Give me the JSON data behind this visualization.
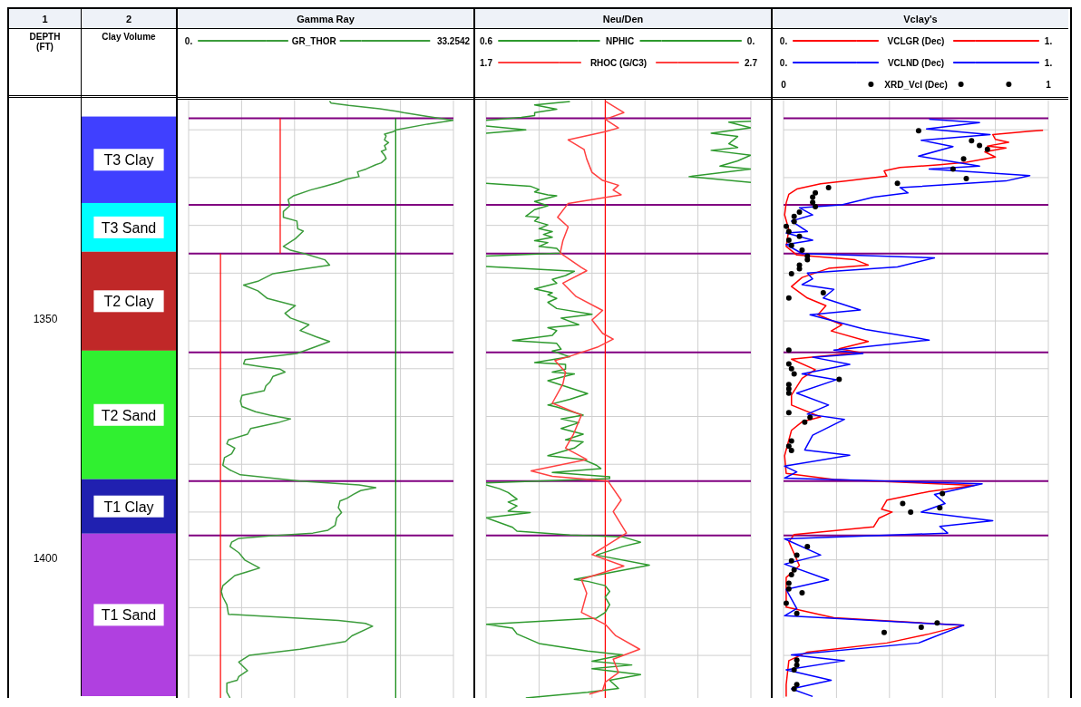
{
  "chart_data": [
    {
      "type": "bar",
      "title": "Clay Volume",
      "ylabel": "DEPTH (FT)",
      "annotations": [
        "1",
        "2"
      ],
      "categories": [
        null
      ],
      "ylim": [
        1428.9,
        1303.7
      ],
      "yticks": [
        1350,
        1400
      ],
      "series": [
        {
          "name": "T3 Clay",
          "color": "#4040ff",
          "base": [
            1307.6
          ],
          "values": [
            18.1
          ]
        },
        {
          "name": "T3 Sand",
          "color": "#00ffff",
          "base": [
            1325.7
          ],
          "values": [
            10.2
          ]
        },
        {
          "name": "T2 Clay",
          "color": "#c02828",
          "base": [
            1335.9
          ],
          "values": [
            20.7
          ]
        },
        {
          "name": "T2 Sand",
          "color": "#30f030",
          "base": [
            1356.6
          ],
          "values": [
            26.9
          ]
        },
        {
          "name": "T1 Clay",
          "color": "#2020b0",
          "base": [
            1383.5
          ],
          "values": [
            11.4
          ]
        },
        {
          "name": "T1 Sand",
          "color": "#b040e0",
          "base": [
            1394.9
          ],
          "values": [
            34.0
          ]
        }
      ]
    },
    {
      "type": "line",
      "title": "Gamma Ray",
      "legend": "top",
      "grid": true,
      "tick_labels": "x",
      "ylim": [
        1428.9,
        1303.7
      ],
      "yticks": [
        {
          "value": 1310,
          "label": null
        },
        {
          "value": 1320,
          "label": null
        },
        {
          "value": 1330,
          "label": null
        },
        {
          "value": 1340,
          "label": null
        },
        {
          "value": 1350,
          "label": null
        },
        {
          "value": 1360,
          "label": null
        },
        {
          "value": 1370,
          "label": null
        },
        {
          "value": 1380,
          "label": null
        },
        {
          "value": 1390,
          "label": null
        },
        {
          "value": 1400,
          "label": null
        },
        {
          "value": 1410,
          "label": null
        },
        {
          "value": 1420,
          "label": null
        }
      ],
      "xlim": [
        0,
        33.2542
      ],
      "xticks": [
        {
          "value": 0,
          "label": "0."
        },
        {
          "value": 6.65084,
          "label": null
        },
        {
          "value": 13.30168,
          "label": null
        },
        {
          "value": 19.95252,
          "label": null
        },
        {
          "value": 26.60336,
          "label": null
        },
        33.2542
      ],
      "ref_lines": [
        {
          "axis": "y",
          "value": 1307.6,
          "color": "#800080"
        },
        {
          "axis": "y",
          "value": 1325.7,
          "color": "#800080"
        },
        {
          "axis": "y",
          "value": 1335.9,
          "color": "#800080"
        },
        {
          "axis": "y",
          "value": 1356.6,
          "color": "#800080"
        },
        {
          "axis": "y",
          "value": 1383.5,
          "color": "#800080"
        },
        {
          "axis": "y",
          "value": 1394.9,
          "color": "#800080"
        }
      ],
      "series": [
        {
          "type": "line",
          "color": "#ff0000",
          "x": [
            11.5,
            11.5
          ],
          "values": [
            1307.6,
            1335.9
          ]
        },
        {
          "type": "line",
          "color": "#ff0000",
          "x": [
            4.0,
            4.0
          ],
          "values": [
            1335.9,
            1428.9
          ]
        },
        {
          "type": "line",
          "color": "#008000",
          "x": [
            26.0,
            26.0
          ],
          "values": [
            1307.6,
            1428.9
          ]
        },
        {
          "name": "GR_THOR",
          "type": "line",
          "color": "#3c9c3c",
          "x": [
            17.7,
            17.9,
            20.1,
            24.0,
            26.1,
            27.0,
            30.0,
            33.2,
            30.0,
            26.1,
            25.7,
            24.6,
            24.8,
            24.6,
            25.1,
            24.6,
            24.8,
            24.2,
            24.6,
            24.8,
            24.2,
            23.5,
            22.3,
            21.2,
            21.4,
            19.9,
            18.8,
            17.1,
            15.3,
            13.2,
            12.5,
            12.7,
            11.9,
            11.9,
            13.6,
            13.7,
            14.4,
            13.4,
            11.9,
            12.8,
            14.7,
            17.1,
            17.7,
            14.0,
            10.6,
            8.7,
            6.9,
            8.7,
            9.9,
            13.4,
            12.1,
            12.8,
            15.1,
            14.0,
            16.0,
            17.7,
            15.8,
            13.6,
            7.1,
            6.9,
            8.9,
            11.5,
            12.1,
            10.6,
            10.2,
            9.7,
            9.5,
            6.7,
            6.5,
            6.7,
            8.4,
            10.2,
            12.8,
            11.2,
            7.8,
            7.4,
            5.0,
            4.8,
            5.8,
            5.4,
            4.5,
            4.3,
            5.2,
            6.5,
            14.0,
            21.4,
            23.5,
            21.6,
            20.7,
            19.9,
            19.0,
            18.8,
            19.2,
            18.6,
            18.4,
            17.5,
            15.6,
            10.2,
            6.3,
            5.4,
            5.2,
            6.3,
            7.1,
            8.9,
            7.4,
            5.8,
            4.3,
            4.1,
            4.3,
            4.8,
            5.0,
            18.8,
            22.2,
            23.1,
            20.5,
            19.7,
            14.0,
            7.6,
            6.3,
            7.4,
            6.3,
            6.1,
            4.8,
            4.8,
            5.2
          ],
          "values": [
            1304.0,
            1304.4,
            1304.9,
            1305.6,
            1306.1,
            1306.4,
            1307.2,
            1308.0,
            1308.8,
            1310.0,
            1310.4,
            1310.9,
            1311.3,
            1312.1,
            1312.7,
            1313.3,
            1314.1,
            1314.5,
            1315.3,
            1316.0,
            1316.9,
            1317.3,
            1318.2,
            1318.8,
            1319.8,
            1320.3,
            1321.0,
            1321.8,
            1322.6,
            1323.8,
            1324.6,
            1325.9,
            1327.1,
            1328.3,
            1329.1,
            1330.7,
            1331.2,
            1332.8,
            1334.4,
            1335.2,
            1336.0,
            1337.2,
            1338.3,
            1339.2,
            1340.1,
            1341.7,
            1342.5,
            1343.7,
            1345.3,
            1346.8,
            1348.4,
            1349.4,
            1350.8,
            1352.0,
            1353.3,
            1354.3,
            1355.5,
            1356.8,
            1358.1,
            1359.0,
            1359.5,
            1360.1,
            1360.7,
            1361.6,
            1362.8,
            1363.6,
            1364.6,
            1365.6,
            1366.8,
            1367.9,
            1369.0,
            1369.7,
            1370.5,
            1371.3,
            1372.5,
            1373.7,
            1374.9,
            1375.7,
            1376.6,
            1377.8,
            1378.6,
            1380.2,
            1381.2,
            1382.2,
            1383.5,
            1384.3,
            1384.9,
            1385.5,
            1386.3,
            1387.1,
            1387.7,
            1389.1,
            1390.1,
            1391.2,
            1392.8,
            1393.8,
            1394.4,
            1395.0,
            1395.5,
            1396.3,
            1397.2,
            1398.5,
            1400.1,
            1401.7,
            1402.5,
            1403.3,
            1405.4,
            1406.6,
            1407.8,
            1409.4,
            1411.4,
            1412.7,
            1413.3,
            1413.9,
            1415.9,
            1417.1,
            1418.7,
            1420.0,
            1421.4,
            1423.2,
            1424.4,
            1425.2,
            1425.8,
            1427.7,
            1428.9
          ]
        }
      ]
    },
    {
      "type": "line",
      "title": "Neu/Den",
      "legend": "top",
      "grid": true,
      "tick_labels": "x",
      "ylim": [
        1428.9,
        1303.7
      ],
      "yticks": [
        {
          "value": 1310,
          "label": null
        },
        {
          "value": 1320,
          "label": null
        },
        {
          "value": 1330,
          "label": null
        },
        {
          "value": 1340,
          "label": null
        },
        {
          "value": 1350,
          "label": null
        },
        {
          "value": 1360,
          "label": null
        },
        {
          "value": 1370,
          "label": null
        },
        {
          "value": 1380,
          "label": null
        },
        {
          "value": 1390,
          "label": null
        },
        {
          "value": 1400,
          "label": null
        },
        {
          "value": 1410,
          "label": null
        },
        {
          "value": 1420,
          "label": null
        }
      ],
      "xlim": [
        0.6,
        0
      ],
      "xticks": [
        0.6,
        {
          "value": 0.48,
          "label": null
        },
        {
          "value": 0.36,
          "label": null
        },
        {
          "value": 0.24,
          "label": null
        },
        {
          "value": 0.12,
          "label": null
        },
        {
          "value": 0,
          "label": "0."
        }
      ],
      "x2lim": [
        1.7,
        2.7
      ],
      "x2ticks": [
        1.7,
        2.7
      ],
      "ref_lines": [
        {
          "axis": "y",
          "value": 1307.6,
          "color": "#800080"
        },
        {
          "axis": "y",
          "value": 1325.7,
          "color": "#800080"
        },
        {
          "axis": "y",
          "value": 1335.9,
          "color": "#800080"
        },
        {
          "axis": "y",
          "value": 1356.6,
          "color": "#800080"
        },
        {
          "axis": "y",
          "value": 1383.5,
          "color": "#800080"
        },
        {
          "axis": "y",
          "value": 1394.9,
          "color": "#800080"
        }
      ],
      "series": [
        {
          "type": "line",
          "color": "#ff0000",
          "axis": "x2",
          "x": [
            2.15,
            2.15
          ],
          "values": [
            1303.7,
            1428.9
          ]
        },
        {
          "name": "NPHIC",
          "type": "line",
          "color": "#2e9a2e",
          "x": [
            0.0,
            0.05,
            0.0,
            0.09,
            0.03,
            0.05,
            0.03,
            0.09,
            0.0,
            0.03,
            0.07,
            0.0,
            0.14,
            0.0,
            null,
            0.41,
            0.49,
            0.44,
            0.49,
            0.49,
            0.52,
            0.6,
            null,
            0.6,
            0.51,
            0.6,
            null,
            0.6,
            0.5,
            0.48,
            0.49,
            0.46,
            0.44,
            0.49,
            0.46,
            0.49,
            0.51,
            0.48,
            0.49,
            0.46,
            0.48,
            0.45,
            0.47,
            0.45,
            0.49,
            0.46,
            0.48,
            0.44,
            0.43,
            0.6,
            null,
            0.6,
            0.4,
            0.42,
            0.45,
            0.44,
            0.49,
            0.45,
            0.46,
            0.44,
            0.46,
            0.44,
            0.36,
            0.43,
            0.39,
            0.46,
            0.44,
            0.45,
            0.54,
            0.44,
            0.43,
            0.45,
            0.41,
            0.49,
            0.42,
            0.42,
            0.45,
            0.4,
            0.46,
            0.37,
            0.41,
            0.46,
            0.44,
            0.38,
            0.43,
            0.39,
            0.43,
            0.38,
            0.42,
            0.38,
            0.4,
            0.46,
            0.38,
            0.35,
            0.34,
            0.45,
            0.32,
            0.32,
            0.6,
            null,
            0.6,
            0.57,
            0.55,
            0.53,
            0.55,
            0.53,
            0.55,
            0.5,
            0.6,
            0.54,
            0.53,
            0.41,
            0.29,
            0.25,
            0.29,
            0.35,
            0.23,
            0.4,
            0.37,
            0.33,
            0.32,
            0.33,
            0.32,
            0.33,
            0.35,
            0.6,
            0.54,
            0.53,
            0.48,
            0.37,
            0.29,
            0.36,
            0.27,
            0.36,
            0.25,
            0.32,
            0.3,
            0.37,
            0.51
          ],
          "values": [
            1308.2,
            1308.4,
            1309.6,
            1310.7,
            1311.4,
            1312.9,
            1313.7,
            1314.3,
            1315.3,
            1316.5,
            1317.6,
            1318.2,
            1319.8,
            1321.0,
            null,
            1304.1,
            1304.8,
            1305.7,
            1306.4,
            1307.0,
            1307.4,
            1308.0,
            null,
            1309.2,
            1310.0,
            1310.7,
            null,
            1321.2,
            1321.8,
            1322.5,
            1323.0,
            1323.6,
            1323.8,
            1325.0,
            1325.9,
            1326.7,
            1328.1,
            1328.3,
            1329.1,
            1329.9,
            1330.7,
            1331.3,
            1331.9,
            1332.5,
            1333.2,
            1333.6,
            1334.4,
            1334.8,
            1335.8,
            1336.4,
            null,
            1338.6,
            1339.6,
            1340.5,
            1341.3,
            1342.1,
            1343.3,
            1344.1,
            1344.5,
            1345.3,
            1346.1,
            1347.4,
            1348.6,
            1349.4,
            1350.8,
            1351.4,
            1352.0,
            1353.0,
            1354.1,
            1354.7,
            1355.9,
            1356.3,
            1357.5,
            1358.7,
            1359.1,
            1360.1,
            1360.7,
            1361.1,
            1362.5,
            1365.2,
            1366.4,
            1367.6,
            1368.0,
            1369.7,
            1370.5,
            1371.3,
            1372.5,
            1373.7,
            1374.9,
            1375.3,
            1376.6,
            1378.2,
            1379.0,
            1380.2,
            1380.9,
            1381.7,
            1382.6,
            1383.0,
            1383.9,
            null,
            1384.3,
            1385.1,
            1385.9,
            1387.3,
            1387.9,
            1388.7,
            1389.8,
            1390.1,
            1391.2,
            1393.2,
            1394.0,
            1394.8,
            1395.2,
            1396.3,
            1397.2,
            1399.0,
            1401.1,
            1404.1,
            1404.5,
            1405.4,
            1406.6,
            1407.8,
            1409.4,
            1411.0,
            1412.2,
            1413.5,
            1414.3,
            1415.5,
            1417.5,
            1419.1,
            1419.9,
            1421.2,
            1422.0,
            1422.8,
            1424.0,
            1425.2,
            1426.9,
            1427.7,
            1428.9
          ]
        },
        {
          "name": "RHOC (G/C3)",
          "type": "line",
          "color": "#ff4040",
          "axis": "x2",
          "x": [
            2.15,
            2.22,
            2.15,
            2.2,
            2.15,
            2.01,
            2.07,
            2.08,
            2.1,
            2.14,
            2.2,
            2.18,
            2.21,
            2.01,
            1.97,
            2.01,
            1.99,
            1.98,
            2.06,
            2.08,
            1.99,
            2.04,
            2.14,
            2.1,
            2.14,
            2.18,
            2.12,
            2.01,
            1.96,
            2.0,
            1.99,
            1.95,
            2.06,
            2.03,
            2.0,
            2.08,
            1.87,
            1.95,
            2.16,
            2.21,
            2.18,
            2.23,
            2.1,
            2.22,
            2.06,
            2.08,
            2.06,
            2.15,
            2.19,
            2.28,
            2.18,
            2.2,
            2.15,
            2.14,
            2.09
          ],
          "values": [
            1304.0,
            1306.4,
            1307.8,
            1309.6,
            1310.4,
            1312.1,
            1314.1,
            1316.1,
            1318.9,
            1320.6,
            1321.6,
            1322.6,
            1323.6,
            1325.4,
            1328.3,
            1330.3,
            1333.2,
            1335.8,
            1338.8,
            1339.5,
            1342.1,
            1344.9,
            1347.8,
            1349.8,
            1352.6,
            1353.8,
            1355.5,
            1357.5,
            1358.3,
            1360.7,
            1363.2,
            1367.2,
            1369.7,
            1373.7,
            1376.6,
            1379.0,
            1381.4,
            1382.5,
            1383.5,
            1387.5,
            1389.9,
            1394.4,
            1398.9,
            1401.3,
            1404.1,
            1407.0,
            1411.0,
            1413.5,
            1415.9,
            1418.7,
            1420.8,
            1423.6,
            1425.6,
            1427.3,
            1428.1
          ]
        }
      ]
    },
    {
      "type": "line",
      "title": "Vclay's",
      "legend": "top",
      "grid": true,
      "tick_labels": "x",
      "ylim": [
        1428.9,
        1303.7
      ],
      "yticks": [
        {
          "value": 1310,
          "label": null
        },
        {
          "value": 1320,
          "label": null
        },
        {
          "value": 1330,
          "label": null
        },
        {
          "value": 1340,
          "label": null
        },
        {
          "value": 1350,
          "label": null
        },
        {
          "value": 1360,
          "label": null
        },
        {
          "value": 1370,
          "label": null
        },
        {
          "value": 1380,
          "label": null
        },
        {
          "value": 1390,
          "label": null
        },
        {
          "value": 1400,
          "label": null
        },
        {
          "value": 1410,
          "label": null
        },
        {
          "value": 1420,
          "label": null
        }
      ],
      "xlim": [
        0,
        1
      ],
      "xticks": [
        {
          "value": 0,
          "label": "0."
        },
        {
          "value": 0.2,
          "label": null
        },
        {
          "value": 0.4,
          "label": null
        },
        {
          "value": 0.6,
          "label": null
        },
        {
          "value": 0.8,
          "label": null
        },
        {
          "value": 1,
          "label": "1."
        }
      ],
      "x2lim": [
        0,
        1
      ],
      "x2ticks": [
        0,
        1
      ],
      "ref_lines": [
        {
          "axis": "y",
          "value": 1307.6,
          "color": "#800080"
        },
        {
          "axis": "y",
          "value": 1325.7,
          "color": "#800080"
        },
        {
          "axis": "y",
          "value": 1335.9,
          "color": "#800080"
        },
        {
          "axis": "y",
          "value": 1356.6,
          "color": "#800080"
        },
        {
          "axis": "y",
          "value": 1383.5,
          "color": "#800080"
        },
        {
          "axis": "y",
          "value": 1394.9,
          "color": "#800080"
        }
      ],
      "series": [
        {
          "name": "VCLGR (Dec)",
          "type": "line",
          "color": "#ff0000",
          "x": [
            0.98,
            0.93,
            0.79,
            0.8,
            0.85,
            0.77,
            0.84,
            0.76,
            0.8,
            0.69,
            0.59,
            0.44,
            0.38,
            0.39,
            0.24,
            0.14,
            0.05,
            0.02,
            0.01,
            0.004,
            0.02,
            0.01,
            0.05,
            0.27,
            0.32,
            0.17,
            0.07,
            0.03,
            0.09,
            0.16,
            0.13,
            0.22,
            0.18,
            0.32,
            0.21,
            0.29,
            0.03,
            0.12,
            0.07,
            0.03,
            0.03,
            0.03,
            0.14,
            0.07,
            0.03,
            0.004,
            0.01,
            0.19,
            0.72,
            0.55,
            0.39,
            0.37,
            0.41,
            0.36,
            0.34,
            0.04,
            0.02,
            0.06,
            0.01,
            0.01,
            0.19,
            0.68,
            0.55,
            0.39,
            0.09,
            0.02,
            0.01,
            0.01
          ],
          "values": [
            1310.1,
            1310.3,
            1311.0,
            1312.0,
            1312.6,
            1313.4,
            1313.8,
            1314.6,
            1315.7,
            1316.8,
            1317.3,
            1317.9,
            1318.6,
            1319.7,
            1320.7,
            1321.3,
            1322.4,
            1323.5,
            1325.3,
            1327.8,
            1330.9,
            1334.4,
            1336.2,
            1337.2,
            1338.3,
            1339.0,
            1340.9,
            1342.8,
            1345.2,
            1346.8,
            1348.7,
            1350.8,
            1352.1,
            1354.3,
            1355.8,
            1356.6,
            1358.0,
            1360.2,
            1362.0,
            1365.5,
            1365.8,
            1367.6,
            1370.1,
            1371.1,
            1372.9,
            1378.2,
            1381.9,
            1383.2,
            1384.4,
            1385.7,
            1387.5,
            1389.4,
            1390.0,
            1391.3,
            1393.1,
            1394.7,
            1396.2,
            1401.2,
            1403.7,
            1409.9,
            1412.1,
            1413.7,
            1415.5,
            1417.4,
            1419.3,
            1421.1,
            1426.1,
            1428.6
          ]
        },
        {
          "name": "VCLND (Dec)",
          "type": "line",
          "color": "#0000ff",
          "x": [
            0.55,
            0.74,
            0.54,
            0.78,
            0.52,
            0.64,
            0.51,
            0.74,
            0.55,
            0.93,
            0.84,
            0.44,
            0.47,
            0.34,
            0.22,
            0.06,
            0.11,
            0.03,
            0.09,
            0.01,
            0.11,
            0.01,
            0.07,
            0.57,
            0.43,
            0.09,
            0.11,
            0.07,
            0.19,
            0.15,
            0.29,
            0.1,
            0.31,
            0.55,
            0.19,
            0.3,
            0.11,
            0.25,
            0.07,
            0.2,
            0.05,
            0.17,
            0.09,
            0.23,
            0.11,
            0.08,
            0.25,
            0.004,
            0.05,
            0.004,
            0.75,
            0.57,
            0.61,
            0.52,
            0.79,
            0.59,
            0.62,
            0.004,
            0.14,
            0.004,
            0.17,
            0.01,
            0.05,
            0.004,
            0.68,
            0.51,
            0.03,
            0.23,
            0.01,
            0.18,
            0.03,
            0.11
          ],
          "values": [
            1307.8,
            1308.5,
            1309.8,
            1311.0,
            1312.2,
            1313.5,
            1315.5,
            1317.6,
            1318.2,
            1319.6,
            1320.7,
            1322.1,
            1323.2,
            1324.1,
            1325.7,
            1326.3,
            1327.8,
            1329.1,
            1331.3,
            1331.6,
            1333.1,
            1334.0,
            1335.9,
            1336.8,
            1338.7,
            1340.0,
            1341.2,
            1342.4,
            1343.4,
            1345.2,
            1347.7,
            1348.7,
            1351.8,
            1354.0,
            1356.1,
            1356.8,
            1357.6,
            1359.1,
            1361.1,
            1362.3,
            1365.1,
            1367.6,
            1369.5,
            1370.6,
            1373.9,
            1377.0,
            1378.1,
            1380.4,
            1381.6,
            1382.9,
            1384.1,
            1386.3,
            1388.2,
            1390.0,
            1391.8,
            1393.0,
            1394.4,
            1395.6,
            1399.0,
            1400.9,
            1404.2,
            1406.2,
            1410.2,
            1411.7,
            1413.7,
            1417.4,
            1419.9,
            1421.1,
            1423.0,
            1425.2,
            1427.0,
            1428.6
          ]
        },
        {
          "name": "XRD_Vcl (Dec)",
          "type": "scatter",
          "marker": "circle",
          "color": "#000000",
          "axis": "x2",
          "x": [
            0.51,
            0.71,
            0.74,
            0.77,
            0.68,
            0.64,
            0.69,
            0.43,
            0.17,
            0.12,
            0.11,
            0.11,
            0.12,
            0.06,
            0.04,
            0.04,
            0.01,
            0.02,
            0.06,
            0.02,
            0.03,
            0.07,
            0.09,
            0.09,
            0.06,
            0.06,
            0.03,
            0.15,
            0.02,
            0.02,
            0.02,
            0.03,
            0.04,
            0.21,
            0.02,
            0.02,
            0.02,
            0.02,
            0.1,
            0.08,
            0.03,
            0.02,
            0.03,
            0.6,
            0.45,
            0.59,
            0.48,
            0.09,
            0.05,
            0.03,
            0.04,
            0.03,
            0.02,
            0.02,
            0.07,
            0.01,
            0.05,
            0.58,
            0.52,
            0.38,
            0.05,
            0.05,
            0.04,
            0.05,
            0.04
          ],
          "values": [
            1310.2,
            1312.3,
            1313.3,
            1314.1,
            1316.1,
            1318.2,
            1320.2,
            1321.2,
            1322.1,
            1323.2,
            1324.1,
            1325.2,
            1326.1,
            1327.2,
            1328.1,
            1329.2,
            1330.2,
            1331.3,
            1332.3,
            1333.1,
            1334.2,
            1335.2,
            1336.4,
            1337.2,
            1338.3,
            1339.1,
            1340.1,
            1344.1,
            1345.2,
            1356.1,
            1359.0,
            1360.0,
            1361.1,
            1362.2,
            1363.3,
            1364.2,
            1365.1,
            1369.2,
            1370.2,
            1371.2,
            1375.1,
            1376.2,
            1377.1,
            1386.1,
            1388.2,
            1389.1,
            1390.0,
            1397.2,
            1399.0,
            1400.2,
            1402.1,
            1403.1,
            1404.9,
            1406.1,
            1406.9,
            1409.1,
            1411.2,
            1413.2,
            1414.1,
            1415.2,
            1421.0,
            1422.0,
            1423.0,
            1426.1,
            1427.0
          ]
        }
      ]
    }
  ]
}
